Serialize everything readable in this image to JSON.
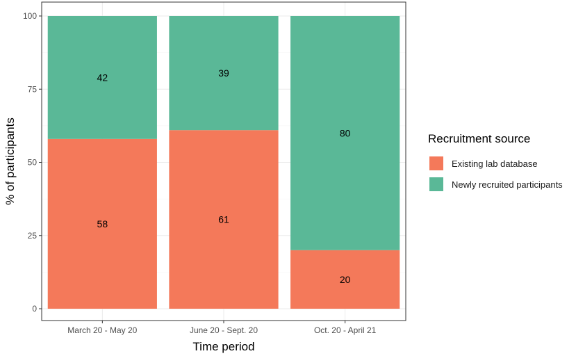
{
  "chart_data": {
    "type": "bar",
    "stacked": true,
    "categories": [
      "March 20 - May 20",
      "June 20 - Sept. 20",
      "Oct. 20 - April 21"
    ],
    "series": [
      {
        "name": "Existing lab database",
        "values": [
          58,
          61,
          20
        ],
        "color": "#f4795a"
      },
      {
        "name": "Newly recruited participants",
        "values": [
          42,
          39,
          80
        ],
        "color": "#5ab897"
      }
    ],
    "xlabel": "Time period",
    "ylabel": "% of participants",
    "ylim": [
      0,
      100
    ],
    "yticks": [
      0,
      25,
      50,
      75,
      100
    ],
    "legend_title": "Recruitment source",
    "legend_position": "right",
    "grid": true
  }
}
